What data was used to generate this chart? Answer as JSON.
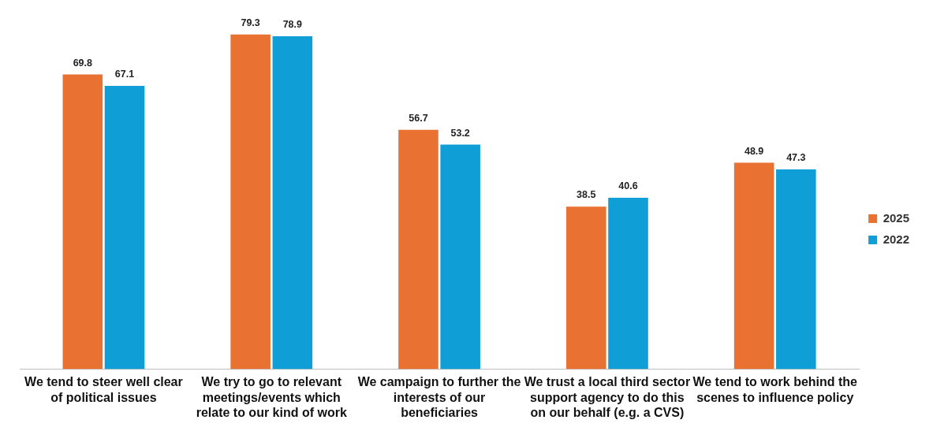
{
  "chart_data": {
    "type": "bar",
    "categories": [
      "We tend to steer well clear of political issues",
      "We try to go to relevant meetings/events which relate to our kind of work",
      "We campaign to further the interests of our beneficiaries",
      "We trust a local third sector support agency to do this on our behalf (e.g. a CVS)",
      "We tend to work behind the scenes to influence policy"
    ],
    "series": [
      {
        "name": "2025",
        "color": "#e97132",
        "values": [
          69.8,
          79.3,
          56.7,
          38.5,
          48.9
        ]
      },
      {
        "name": "2022",
        "color": "#0f9ed5",
        "values": [
          67.1,
          78.9,
          53.2,
          40.6,
          47.3
        ]
      }
    ],
    "data_labels": true,
    "legend": "right",
    "grid": false
  }
}
